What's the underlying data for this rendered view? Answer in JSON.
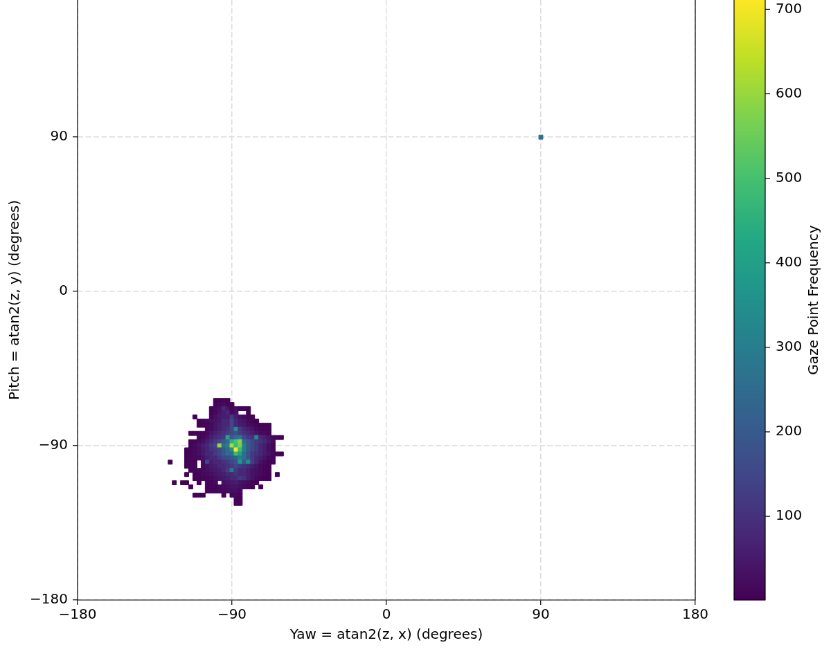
{
  "chart_data": {
    "type": "scatter",
    "xlabel": "Yaw = atan2(z, x) (degrees)",
    "ylabel": "Pitch = atan2(z, y) (degrees)",
    "clabel": "Gaze Point Frequency",
    "marker": "square",
    "grid": true,
    "legend": false,
    "xlim": [
      -180,
      180
    ],
    "ylim": [
      -180,
      170
    ],
    "xticks": [
      {
        "value": -180,
        "label": "−180"
      },
      {
        "value": -90,
        "label": "−90"
      },
      0,
      90,
      180
    ],
    "yticks": [
      {
        "value": -180,
        "label": "−180"
      },
      {
        "value": -90,
        "label": "−90"
      },
      0,
      90
    ],
    "clim": [
      1,
      711
    ],
    "cticks": [
      100,
      200,
      300,
      400,
      500,
      600,
      700
    ],
    "x": [
      -99.6,
      -97.2,
      -94.8,
      -92.4,
      -99.6,
      -97.2,
      -94.8,
      -92.4,
      -90,
      -102,
      -99.6,
      -97.2,
      -94.8,
      -92.4,
      -90,
      -87.6,
      -85.2,
      -82.8,
      -80.4,
      -102,
      -99.6,
      -97.2,
      -94.8,
      -92.4,
      -90,
      -87.6,
      -80.4,
      -111.6,
      -102,
      -99.6,
      -97.2,
      -94.8,
      -92.4,
      -90,
      -87.6,
      -85.2,
      -82.8,
      -80.4,
      -78,
      -109.2,
      -106.8,
      -104.4,
      -102,
      -99.6,
      -97.2,
      -94.8,
      -92.4,
      -90,
      -87.6,
      -85.2,
      -82.8,
      -80.4,
      -78,
      -75.6,
      -109.2,
      -106.8,
      -104.4,
      -102,
      -99.6,
      -97.2,
      -94.8,
      -92.4,
      -90,
      -87.6,
      -85.2,
      -82.8,
      -80.4,
      -78,
      -75.6,
      -73.2,
      -70.8,
      -68.4,
      -104.4,
      -102,
      -99.6,
      -97.2,
      -94.8,
      -92.4,
      -90,
      -87.6,
      -85.2,
      -82.8,
      -80.4,
      -78,
      -75.6,
      -73.2,
      -70.8,
      -68.4,
      -114,
      -111.6,
      -109.2,
      -106.8,
      -104.4,
      -102,
      -99.6,
      -97.2,
      -94.8,
      -92.4,
      -90,
      -87.6,
      -85.2,
      -82.8,
      -80.4,
      -78,
      -75.6,
      -73.2,
      -70.8,
      -68.4,
      -109.2,
      -106.8,
      -104.4,
      -102,
      -99.6,
      -97.2,
      -94.8,
      -92.4,
      -90,
      -87.6,
      -85.2,
      -82.8,
      -80.4,
      -78,
      -75.6,
      -73.2,
      -70.8,
      -68.4,
      -66,
      -63.6,
      -61.2,
      -114,
      -111.6,
      -109.2,
      -106.8,
      -104.4,
      -102,
      -99.6,
      -97.2,
      -94.8,
      -92.4,
      -90,
      -87.6,
      -85.2,
      -82.8,
      -80.4,
      -78,
      -75.6,
      -73.2,
      -70.8,
      -68.4,
      -66,
      -114,
      -111.6,
      -109.2,
      -106.8,
      -104.4,
      -102,
      -99.6,
      -97.2,
      -94.8,
      -92.4,
      -90,
      -87.6,
      -85.2,
      -82.8,
      -80.4,
      -78,
      -75.6,
      -73.2,
      -70.8,
      -68.4,
      -66,
      -116.4,
      -114,
      -111.6,
      -109.2,
      -106.8,
      -104.4,
      -102,
      -99.6,
      -97.2,
      -94.8,
      -92.4,
      -90,
      -87.6,
      -85.2,
      -82.8,
      -80.4,
      -78,
      -75.6,
      -73.2,
      -70.8,
      -68.4,
      -66,
      -116.4,
      -114,
      -111.6,
      -109.2,
      -106.8,
      -104.4,
      -102,
      -99.6,
      -97.2,
      -94.8,
      -92.4,
      -90,
      -87.6,
      -85.2,
      -82.8,
      -80.4,
      -78,
      -75.6,
      -73.2,
      -70.8,
      -68.4,
      -66,
      -63.6,
      -61.2,
      -116.4,
      -114,
      -111.6,
      -109.2,
      -106.8,
      -104.4,
      -102,
      -99.6,
      -97.2,
      -94.8,
      -92.4,
      -90,
      -87.6,
      -85.2,
      -82.8,
      -80.4,
      -78,
      -75.6,
      -73.2,
      -70.8,
      -68.4,
      -66,
      -126,
      -116.4,
      -114,
      -111.6,
      -106.8,
      -104.4,
      -102,
      -99.6,
      -97.2,
      -94.8,
      -92.4,
      -90,
      -87.6,
      -85.2,
      -82.8,
      -80.4,
      -78,
      -75.6,
      -73.2,
      -70.8,
      -68.4,
      -66,
      -116.4,
      -114,
      -111.6,
      -106.8,
      -104.4,
      -102,
      -99.6,
      -97.2,
      -94.8,
      -92.4,
      -90,
      -87.6,
      -85.2,
      -82.8,
      -80.4,
      -78,
      -75.6,
      -73.2,
      -70.8,
      -68.4,
      -114,
      -111.6,
      -109.2,
      -106.8,
      -104.4,
      -102,
      -99.6,
      -97.2,
      -94.8,
      -92.4,
      -90,
      -87.6,
      -85.2,
      -82.8,
      -80.4,
      -78,
      -75.6,
      -73.2,
      -70.8,
      -68.4,
      -116.4,
      -111.6,
      -109.2,
      -106.8,
      -104.4,
      -102,
      -99.6,
      -97.2,
      -94.8,
      -92.4,
      -90,
      -87.6,
      -85.2,
      -82.8,
      -80.4,
      -78,
      -75.6,
      -73.2,
      -70.8,
      -68.4,
      -63.6,
      -111.6,
      -109.2,
      -106.8,
      -104.4,
      -102,
      -99.6,
      -97.2,
      -94.8,
      -92.4,
      -90,
      -87.6,
      -85.2,
      -82.8,
      -80.4,
      -78,
      -75.6,
      -73.2,
      -70.8,
      -68.4,
      -123.6,
      -118.8,
      -116.4,
      -109.2,
      -104.4,
      -102,
      -99.6,
      -94.8,
      -92.4,
      -90,
      -87.6,
      -85.2,
      -82.8,
      -80.4,
      -78,
      -75.6,
      -114,
      -104.4,
      -102,
      -99.6,
      -97.2,
      -94.8,
      -92.4,
      -90,
      -87.6,
      -85.2,
      -82.8,
      -80.4,
      -78,
      -73.2,
      -104.4,
      -102,
      -99.6,
      -97.2,
      -94.8,
      -92.4,
      -90,
      -87.6,
      -85.2,
      -111.6,
      -109.2,
      -106.8,
      -94.8,
      -90,
      -87.6,
      -85.2,
      -87.6,
      -85.2,
      -87.6,
      -85.2,
      90
    ],
    "values": [
      -63.6,
      -63.6,
      -63.6,
      -63.6,
      -66,
      -66,
      -66,
      -66,
      -66,
      -68.4,
      -68.4,
      -68.4,
      -68.4,
      -68.4,
      -68.4,
      -68.4,
      -68.4,
      -68.4,
      -68.4,
      -70.8,
      -70.8,
      -70.8,
      -70.8,
      -70.8,
      -70.8,
      -70.8,
      -70.8,
      -73.2,
      -73.2,
      -73.2,
      -73.2,
      -73.2,
      -73.2,
      -73.2,
      -73.2,
      -73.2,
      -73.2,
      -73.2,
      -73.2,
      -75.6,
      -75.6,
      -75.6,
      -75.6,
      -75.6,
      -75.6,
      -75.6,
      -75.6,
      -75.6,
      -75.6,
      -75.6,
      -75.6,
      -75.6,
      -75.6,
      -75.6,
      -78,
      -78,
      -78,
      -78,
      -78,
      -78,
      -78,
      -78,
      -78,
      -78,
      -78,
      -78,
      -78,
      -78,
      -78,
      -78,
      -78,
      -78,
      -80.4,
      -80.4,
      -80.4,
      -80.4,
      -80.4,
      -80.4,
      -80.4,
      -80.4,
      -80.4,
      -80.4,
      -80.4,
      -80.4,
      -80.4,
      -80.4,
      -80.4,
      -80.4,
      -82.8,
      -82.8,
      -82.8,
      -82.8,
      -82.8,
      -82.8,
      -82.8,
      -82.8,
      -82.8,
      -82.8,
      -82.8,
      -82.8,
      -82.8,
      -82.8,
      -82.8,
      -82.8,
      -82.8,
      -82.8,
      -82.8,
      -82.8,
      -85.2,
      -85.2,
      -85.2,
      -85.2,
      -85.2,
      -85.2,
      -85.2,
      -85.2,
      -85.2,
      -85.2,
      -85.2,
      -85.2,
      -85.2,
      -85.2,
      -85.2,
      -85.2,
      -85.2,
      -85.2,
      -85.2,
      -85.2,
      -85.2,
      -87.6,
      -87.6,
      -87.6,
      -87.6,
      -87.6,
      -87.6,
      -87.6,
      -87.6,
      -87.6,
      -87.6,
      -87.6,
      -87.6,
      -87.6,
      -87.6,
      -87.6,
      -87.6,
      -87.6,
      -87.6,
      -87.6,
      -87.6,
      -87.6,
      -90,
      -90,
      -90,
      -90,
      -90,
      -90,
      -90,
      -90,
      -90,
      -90,
      -90,
      -90,
      -90,
      -90,
      -90,
      -90,
      -90,
      -90,
      -90,
      -90,
      -90,
      -92.4,
      -92.4,
      -92.4,
      -92.4,
      -92.4,
      -92.4,
      -92.4,
      -92.4,
      -92.4,
      -92.4,
      -92.4,
      -92.4,
      -92.4,
      -92.4,
      -92.4,
      -92.4,
      -92.4,
      -92.4,
      -92.4,
      -92.4,
      -92.4,
      -92.4,
      -94.8,
      -94.8,
      -94.8,
      -94.8,
      -94.8,
      -94.8,
      -94.8,
      -94.8,
      -94.8,
      -94.8,
      -94.8,
      -94.8,
      -94.8,
      -94.8,
      -94.8,
      -94.8,
      -94.8,
      -94.8,
      -94.8,
      -94.8,
      -94.8,
      -94.8,
      -94.8,
      -94.8,
      -97.2,
      -97.2,
      -97.2,
      -97.2,
      -97.2,
      -97.2,
      -97.2,
      -97.2,
      -97.2,
      -97.2,
      -97.2,
      -97.2,
      -97.2,
      -97.2,
      -97.2,
      -97.2,
      -97.2,
      -97.2,
      -97.2,
      -97.2,
      -97.2,
      -97.2,
      -99.6,
      -99.6,
      -99.6,
      -99.6,
      -99.6,
      -99.6,
      -99.6,
      -99.6,
      -99.6,
      -99.6,
      -99.6,
      -99.6,
      -99.6,
      -99.6,
      -99.6,
      -99.6,
      -99.6,
      -99.6,
      -99.6,
      -99.6,
      -99.6,
      -99.6,
      -102,
      -102,
      -102,
      -102,
      -102,
      -102,
      -102,
      -102,
      -102,
      -102,
      -102,
      -102,
      -102,
      -102,
      -102,
      -102,
      -102,
      -102,
      -102,
      -102,
      -104.4,
      -104.4,
      -104.4,
      -104.4,
      -104.4,
      -104.4,
      -104.4,
      -104.4,
      -104.4,
      -104.4,
      -104.4,
      -104.4,
      -104.4,
      -104.4,
      -104.4,
      -104.4,
      -104.4,
      -104.4,
      -104.4,
      -104.4,
      -106.8,
      -106.8,
      -106.8,
      -106.8,
      -106.8,
      -106.8,
      -106.8,
      -106.8,
      -106.8,
      -106.8,
      -106.8,
      -106.8,
      -106.8,
      -106.8,
      -106.8,
      -106.8,
      -106.8,
      -106.8,
      -106.8,
      -106.8,
      -106.8,
      -109.2,
      -109.2,
      -109.2,
      -109.2,
      -109.2,
      -109.2,
      -109.2,
      -109.2,
      -109.2,
      -109.2,
      -109.2,
      -109.2,
      -109.2,
      -109.2,
      -109.2,
      -109.2,
      -109.2,
      -109.2,
      -109.2,
      -111.6,
      -111.6,
      -111.6,
      -111.6,
      -111.6,
      -111.6,
      -111.6,
      -111.6,
      -111.6,
      -111.6,
      -111.6,
      -111.6,
      -111.6,
      -111.6,
      -111.6,
      -111.6,
      -114,
      -114,
      -114,
      -114,
      -114,
      -114,
      -114,
      -114,
      -114,
      -114,
      -114,
      -114,
      -114,
      -114,
      -116.4,
      -116.4,
      -116.4,
      -116.4,
      -116.4,
      -116.4,
      -116.4,
      -116.4,
      -116.4,
      -118.8,
      -118.8,
      -118.8,
      -118.8,
      -118.8,
      -118.8,
      -118.8,
      -121.2,
      -121.2,
      -123.6,
      -123.6,
      90
    ],
    "cvalues": [
      5,
      5,
      10,
      5,
      5,
      15,
      20,
      10,
      5,
      5,
      20,
      30,
      80,
      40,
      10,
      30,
      10,
      10,
      5,
      5,
      15,
      40,
      60,
      80,
      20,
      40,
      5,
      5,
      10,
      30,
      50,
      60,
      60,
      120,
      60,
      30,
      20,
      10,
      5,
      5,
      10,
      20,
      30,
      40,
      50,
      80,
      80,
      150,
      80,
      50,
      40,
      20,
      10,
      5,
      5,
      5,
      10,
      20,
      40,
      60,
      80,
      80,
      150,
      80,
      60,
      50,
      30,
      20,
      10,
      5,
      5,
      5,
      10,
      20,
      40,
      60,
      80,
      100,
      150,
      350,
      120,
      80,
      60,
      40,
      20,
      10,
      5,
      5,
      5,
      5,
      10,
      10,
      20,
      40,
      60,
      80,
      100,
      120,
      150,
      180,
      130,
      100,
      80,
      60,
      40,
      20,
      20,
      10,
      10,
      20,
      30,
      60,
      80,
      100,
      120,
      420,
      200,
      250,
      280,
      150,
      120,
      100,
      330,
      80,
      60,
      40,
      20,
      10,
      5,
      5,
      10,
      20,
      30,
      60,
      80,
      120,
      150,
      200,
      250,
      450,
      500,
      580,
      250,
      200,
      150,
      120,
      100,
      80,
      50,
      20,
      10,
      20,
      40,
      60,
      80,
      120,
      150,
      600,
      250,
      300,
      620,
      480,
      560,
      300,
      200,
      150,
      120,
      80,
      60,
      30,
      10,
      5,
      10,
      20,
      30,
      50,
      70,
      100,
      120,
      150,
      200,
      250,
      350,
      705,
      480,
      300,
      200,
      150,
      120,
      80,
      60,
      30,
      10,
      5,
      10,
      20,
      30,
      50,
      80,
      80,
      120,
      150,
      200,
      250,
      250,
      480,
      400,
      250,
      180,
      120,
      100,
      80,
      60,
      40,
      20,
      10,
      5,
      5,
      10,
      15,
      20,
      40,
      60,
      80,
      80,
      120,
      150,
      170,
      190,
      220,
      300,
      250,
      180,
      120,
      80,
      60,
      40,
      20,
      10,
      5,
      5,
      10,
      10,
      20,
      150,
      60,
      80,
      80,
      100,
      120,
      150,
      180,
      380,
      200,
      350,
      130,
      80,
      40,
      20,
      10,
      5,
      5,
      10,
      10,
      15,
      30,
      50,
      60,
      80,
      80,
      100,
      120,
      150,
      120,
      100,
      80,
      60,
      40,
      20,
      10,
      5,
      5,
      10,
      15,
      20,
      30,
      40,
      50,
      60,
      80,
      120,
      280,
      120,
      80,
      80,
      60,
      40,
      30,
      20,
      10,
      5,
      5,
      5,
      10,
      15,
      20,
      30,
      40,
      50,
      60,
      80,
      80,
      100,
      80,
      80,
      60,
      40,
      30,
      20,
      10,
      5,
      5,
      5,
      10,
      10,
      15,
      20,
      30,
      40,
      50,
      60,
      80,
      80,
      120,
      100,
      60,
      40,
      20,
      10,
      5,
      5,
      5,
      5,
      5,
      5,
      10,
      10,
      20,
      30,
      40,
      50,
      60,
      40,
      30,
      20,
      10,
      5,
      5,
      5,
      10,
      10,
      15,
      20,
      30,
      40,
      40,
      30,
      20,
      10,
      5,
      5,
      10,
      10,
      10,
      15,
      20,
      20,
      30,
      30,
      20,
      5,
      5,
      5,
      5,
      10,
      20,
      10,
      10,
      10,
      5,
      5,
      270
    ]
  }
}
